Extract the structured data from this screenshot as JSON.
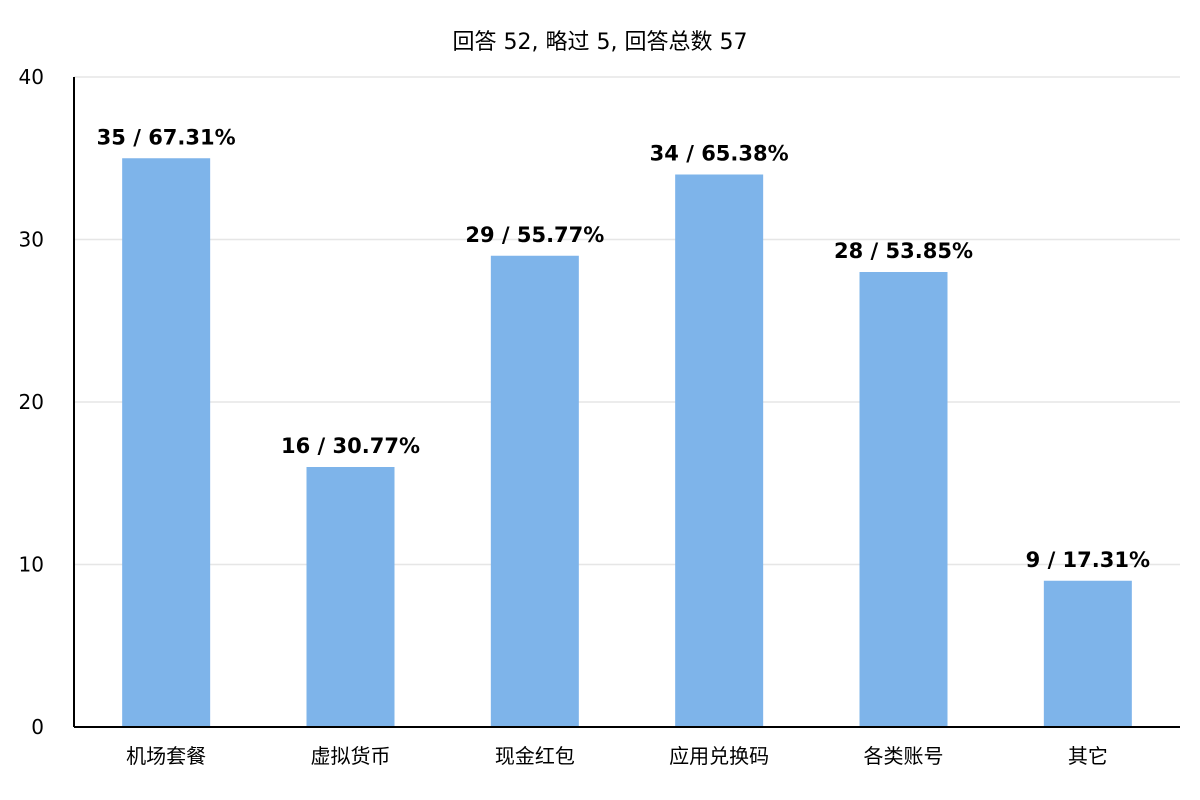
{
  "chart_data": {
    "type": "bar",
    "title": "回答 52, 略过 5, 回答总数 57",
    "categories": [
      "机场套餐",
      "虚拟货币",
      "现金红包",
      "应用兑换码",
      "各类账号",
      "其它"
    ],
    "values": [
      35,
      16,
      29,
      34,
      28,
      9
    ],
    "data_labels": [
      "35 / 67.31%",
      "16 / 30.77%",
      "29 / 55.77%",
      "34 / 65.38%",
      "28 / 53.85%",
      "9 / 17.31%"
    ],
    "ylim": [
      0,
      40
    ],
    "yticks": [
      "0",
      "10",
      "20",
      "30",
      "40"
    ],
    "xlabel": "",
    "ylabel": "",
    "grid": true,
    "bar_color": "#7eb4ea",
    "grid_color": "#e6e6e6",
    "axis_color": "#000000"
  }
}
